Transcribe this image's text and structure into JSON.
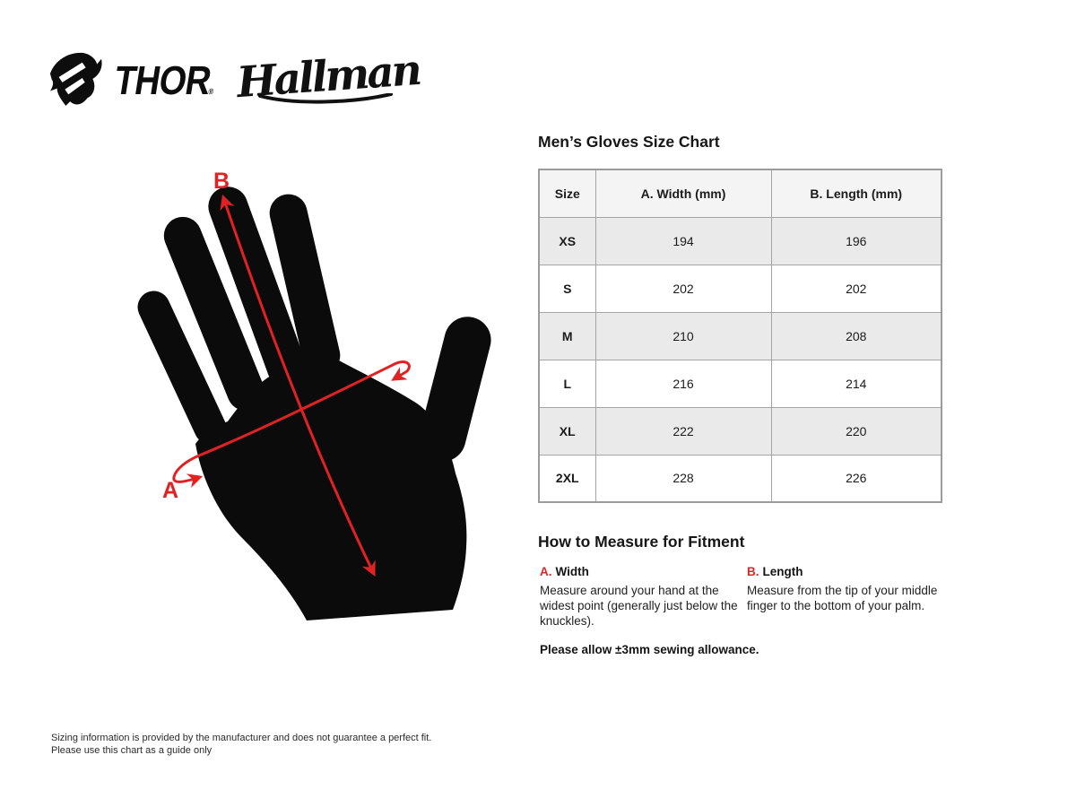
{
  "brand": {
    "thor": "THOR",
    "registered": "®",
    "hallman": "Hallman"
  },
  "size_chart": {
    "title": "Men’s Gloves Size Chart",
    "columns": [
      "Size",
      "A. Width (mm)",
      "B. Length (mm)"
    ],
    "rows": [
      {
        "size": "XS",
        "width": "194",
        "length": "196"
      },
      {
        "size": "S",
        "width": "202",
        "length": "202"
      },
      {
        "size": "M",
        "width": "210",
        "length": "208"
      },
      {
        "size": "L",
        "width": "216",
        "length": "214"
      },
      {
        "size": "XL",
        "width": "222",
        "length": "220"
      },
      {
        "size": "2XL",
        "width": "228",
        "length": "226"
      }
    ]
  },
  "diagram": {
    "label_a": "A",
    "label_b": "B",
    "accent_color": "#e12222",
    "silhouette_color": "#0b0b0b"
  },
  "measure": {
    "title": "How to Measure for Fitment",
    "items": [
      {
        "prefix": "A.",
        "name": "Width",
        "description": "Measure around your hand at the widest point (generally just below the knuckles)."
      },
      {
        "prefix": "B.",
        "name": "Length",
        "description": "Measure from the tip of your middle finger to the bottom of your palm."
      }
    ],
    "allowance_note": "Please allow ±3mm sewing allowance."
  },
  "footer": {
    "line1": "Sizing information is provided by the manufacturer and does not guarantee a perfect fit.",
    "line2": "Please use this chart as a guide only"
  }
}
